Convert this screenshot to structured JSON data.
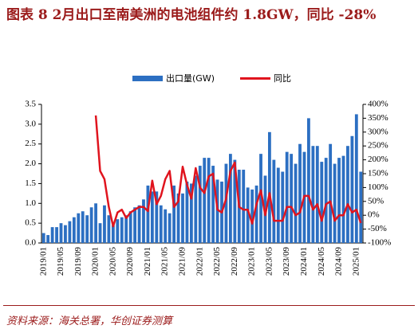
{
  "chart_data": {
    "type": "bar-line",
    "title": "图表 8   2月出口至南美洲的电池组件约 1.8GW，同比 -28%",
    "source": "资料来源：海关总署，华创证券测算",
    "categories": [
      "2019/01",
      null,
      null,
      null,
      "2019/05",
      null,
      null,
      null,
      "2019/09",
      null,
      null,
      null,
      "2020/01",
      null,
      null,
      null,
      "2020/05",
      null,
      null,
      null,
      "2020/09",
      null,
      null,
      null,
      "2021/01",
      null,
      null,
      null,
      "2021/05",
      null,
      null,
      null,
      "2021/09",
      null,
      null,
      null,
      "2022/01",
      null,
      null,
      null,
      "2022/05",
      null,
      null,
      null,
      "2022/09",
      null,
      null,
      null,
      "2023/01",
      null,
      null,
      null,
      "2023/05",
      null,
      null,
      null,
      "2023/09",
      null,
      null,
      null,
      "2024/01",
      null,
      null,
      null,
      "2024/05",
      null,
      null,
      null,
      "2024/09",
      null,
      null,
      null,
      "2025/01",
      null
    ],
    "series": [
      {
        "name": "出口量(GW)",
        "type": "bar",
        "color": "#2c6fc2",
        "axis": "y",
        "values": [
          0.25,
          0.2,
          0.4,
          0.4,
          0.5,
          0.45,
          0.55,
          0.65,
          0.75,
          0.8,
          0.7,
          0.9,
          1.0,
          0.5,
          0.95,
          0.7,
          0.45,
          0.6,
          0.65,
          0.7,
          0.8,
          0.9,
          0.95,
          1.1,
          1.45,
          1.3,
          1.3,
          0.95,
          0.85,
          0.75,
          1.45,
          1.25,
          1.25,
          1.55,
          1.5,
          1.7,
          1.95,
          2.15,
          2.15,
          1.95,
          1.6,
          1.55,
          2.0,
          2.25,
          2.1,
          1.85,
          1.85,
          1.4,
          1.35,
          1.45,
          2.25,
          1.7,
          2.8,
          2.1,
          1.9,
          1.8,
          2.3,
          2.25,
          2.0,
          2.5,
          2.3,
          3.15,
          2.45,
          2.45,
          2.05,
          2.15,
          2.5,
          2.0,
          2.15,
          2.2,
          2.45,
          2.7,
          3.25,
          1.8
        ]
      },
      {
        "name": "同比",
        "type": "line",
        "color": "#e0141e",
        "axis": "y2",
        "values": [
          null,
          null,
          null,
          null,
          null,
          null,
          null,
          null,
          null,
          null,
          null,
          null,
          360,
          160,
          130,
          30,
          -40,
          10,
          20,
          -10,
          10,
          20,
          30,
          30,
          15,
          125,
          40,
          70,
          130,
          160,
          30,
          50,
          175,
          110,
          60,
          170,
          100,
          80,
          140,
          150,
          20,
          10,
          60,
          160,
          190,
          30,
          20,
          20,
          -30,
          40,
          90,
          0,
          80,
          -20,
          -20,
          -20,
          30,
          30,
          0,
          10,
          70,
          70,
          20,
          40,
          -20,
          40,
          50,
          -20,
          0,
          0,
          40,
          10,
          20,
          -28
        ]
      }
    ],
    "ylim": [
      0,
      3.5
    ],
    "yticks": [
      {
        "value": 0,
        "label": "0.0"
      },
      0.5,
      {
        "value": 1,
        "label": "1.0"
      },
      1.5,
      {
        "value": 2,
        "label": "2.0"
      },
      2.5,
      {
        "value": 3,
        "label": "3.0"
      },
      3.5
    ],
    "y2lim": [
      -100,
      400
    ],
    "y2ticks": [
      {
        "value": -100,
        "label": "-100%"
      },
      {
        "value": -50,
        "label": "-50%"
      },
      {
        "value": 0,
        "label": "0%"
      },
      {
        "value": 50,
        "label": "50%"
      },
      {
        "value": 100,
        "label": "100%"
      },
      {
        "value": 150,
        "label": "150%"
      },
      {
        "value": 200,
        "label": "200%"
      },
      {
        "value": 250,
        "label": "250%"
      },
      {
        "value": 300,
        "label": "300%"
      },
      {
        "value": 350,
        "label": "350%"
      },
      {
        "value": 400,
        "label": "400%"
      }
    ],
    "grid": false,
    "legend": "top"
  }
}
